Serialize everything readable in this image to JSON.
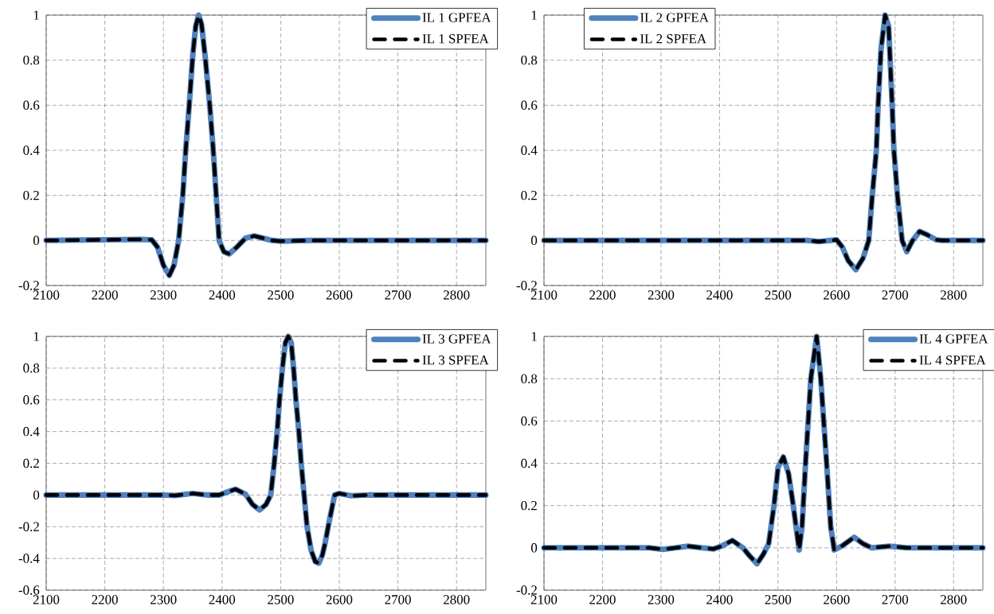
{
  "chart_data": [
    {
      "type": "line",
      "x": [
        2100,
        2260,
        2280,
        2290,
        2300,
        2310,
        2318,
        2326,
        2333,
        2338,
        2344,
        2350,
        2355,
        2360,
        2365,
        2371,
        2379,
        2385,
        2390,
        2395,
        2403,
        2412,
        2425,
        2440,
        2455,
        2470,
        2485,
        2500,
        2550,
        2850
      ],
      "series": [
        {
          "name": "IL 1 GPFEA",
          "color": "#4f81bd",
          "line_style": "solid",
          "values": [
            0,
            0.005,
            0.003,
            -0.03,
            -0.11,
            -0.155,
            -0.11,
            0,
            0.2,
            0.4,
            0.6,
            0.82,
            0.95,
            1,
            0.96,
            0.82,
            0.6,
            0.4,
            0.2,
            0,
            -0.05,
            -0.06,
            -0.03,
            0.01,
            0.02,
            0.01,
            0,
            -0.003,
            0,
            0
          ]
        },
        {
          "name": "IL 1 SPFEA",
          "color": "#000000",
          "line_style": "dashed",
          "values": [
            0,
            0.005,
            0.003,
            -0.03,
            -0.11,
            -0.155,
            -0.11,
            0,
            0.2,
            0.4,
            0.6,
            0.82,
            0.95,
            1,
            0.96,
            0.82,
            0.6,
            0.4,
            0.2,
            0,
            -0.05,
            -0.06,
            -0.03,
            0.01,
            0.02,
            0.01,
            0,
            -0.003,
            0,
            0
          ]
        }
      ],
      "xlim": [
        2100,
        2850
      ],
      "xticks": [
        2100,
        2200,
        2300,
        2400,
        2500,
        2600,
        2700,
        2800
      ],
      "ylim": [
        -0.2,
        1
      ],
      "yticks": [
        -0.2,
        0,
        0.2,
        0.4,
        0.6,
        0.8,
        1
      ],
      "grid": true,
      "legend": "top right"
    },
    {
      "type": "line",
      "x": [
        2100,
        2550,
        2570,
        2590,
        2600,
        2610,
        2620,
        2633,
        2645,
        2655,
        2661,
        2668,
        2671,
        2676,
        2683,
        2689,
        2695,
        2698,
        2704,
        2712,
        2720,
        2730,
        2742,
        2755,
        2770,
        2780,
        2850
      ],
      "series": [
        {
          "name": "IL 2 GPFEA",
          "color": "#4f81bd",
          "line_style": "solid",
          "values": [
            0,
            0,
            -0.005,
            0,
            0.003,
            -0.03,
            -0.09,
            -0.13,
            -0.08,
            0,
            0.2,
            0.4,
            0.6,
            0.85,
            1,
            0.95,
            0.6,
            0.4,
            0.2,
            0,
            -0.05,
            0,
            0.04,
            0.025,
            0.003,
            0,
            0
          ]
        },
        {
          "name": "IL 2 SPFEA",
          "color": "#000000",
          "line_style": "dashed",
          "values": [
            0,
            0,
            -0.005,
            0,
            0.003,
            -0.03,
            -0.09,
            -0.13,
            -0.08,
            0,
            0.2,
            0.4,
            0.6,
            0.85,
            1,
            0.95,
            0.6,
            0.4,
            0.2,
            0,
            -0.05,
            0,
            0.04,
            0.025,
            0.003,
            0,
            0
          ]
        }
      ],
      "xlim": [
        2100,
        2850
      ],
      "xticks": [
        2100,
        2200,
        2300,
        2400,
        2500,
        2600,
        2700,
        2800
      ],
      "ylim": [
        -0.2,
        1
      ],
      "yticks": [
        -0.2,
        0,
        0.2,
        0.4,
        0.6,
        0.8,
        1
      ],
      "grid": true,
      "legend": "top left"
    },
    {
      "type": "line",
      "x": [
        2100,
        2300,
        2320,
        2350,
        2375,
        2395,
        2410,
        2423,
        2440,
        2452,
        2464,
        2475,
        2483,
        2489,
        2494,
        2498,
        2503,
        2508,
        2513,
        2518,
        2522,
        2526,
        2531,
        2535,
        2540,
        2545,
        2552,
        2559,
        2565,
        2571,
        2576,
        2581,
        2592,
        2600,
        2620,
        2650,
        2850
      ],
      "series": [
        {
          "name": "IL 3 GPFEA",
          "color": "#4f81bd",
          "line_style": "solid",
          "values": [
            0,
            0,
            -0.003,
            0.01,
            0,
            0,
            0.02,
            0.037,
            0.005,
            -0.06,
            -0.094,
            -0.06,
            0,
            0.2,
            0.4,
            0.6,
            0.8,
            0.96,
            1,
            0.96,
            0.8,
            0.6,
            0.4,
            0.2,
            0,
            -0.2,
            -0.35,
            -0.42,
            -0.43,
            -0.38,
            -0.3,
            -0.2,
            0,
            0.01,
            -0.005,
            0,
            0
          ]
        },
        {
          "name": "IL 3 SPFEA",
          "color": "#000000",
          "line_style": "dashed",
          "values": [
            0,
            0,
            -0.003,
            0.01,
            0,
            0,
            0.02,
            0.037,
            0.005,
            -0.06,
            -0.094,
            -0.06,
            0,
            0.2,
            0.4,
            0.6,
            0.8,
            0.96,
            1,
            0.96,
            0.8,
            0.6,
            0.4,
            0.2,
            0,
            -0.2,
            -0.35,
            -0.42,
            -0.43,
            -0.38,
            -0.3,
            -0.2,
            0,
            0.01,
            -0.005,
            0,
            0
          ]
        }
      ],
      "xlim": [
        2100,
        2850
      ],
      "xticks": [
        2100,
        2200,
        2300,
        2400,
        2500,
        2600,
        2700,
        2800
      ],
      "ylim": [
        -0.6,
        1
      ],
      "yticks": [
        -0.6,
        -0.4,
        -0.2,
        0,
        0.2,
        0.4,
        0.6,
        0.8,
        1
      ],
      "grid": true,
      "legend": "top right"
    },
    {
      "type": "line",
      "x": [
        2100,
        2280,
        2303,
        2325,
        2346,
        2370,
        2390,
        2405,
        2422,
        2440,
        2452,
        2464,
        2475,
        2484,
        2493,
        2500,
        2509,
        2518,
        2526,
        2536,
        2541,
        2547,
        2556,
        2566,
        2573,
        2583,
        2590,
        2596,
        2610,
        2630,
        2645,
        2660,
        2690,
        2720,
        2850
      ],
      "series": [
        {
          "name": "IL 4 GPFEA",
          "color": "#4f81bd",
          "line_style": "solid",
          "values": [
            0,
            0,
            -0.007,
            0,
            0.008,
            0,
            -0.005,
            0.01,
            0.035,
            0,
            -0.04,
            -0.075,
            -0.03,
            0.02,
            0.2,
            0.38,
            0.43,
            0.35,
            0.2,
            -0.01,
            0.1,
            0.4,
            0.8,
            1,
            0.8,
            0.4,
            0.1,
            -0.01,
            0.01,
            0.05,
            0.02,
            0,
            0.008,
            0,
            0
          ]
        },
        {
          "name": "IL 4 SPFEA",
          "color": "#000000",
          "line_style": "dashed",
          "values": [
            0,
            0,
            -0.007,
            0,
            0.008,
            0,
            -0.005,
            0.01,
            0.035,
            0,
            -0.04,
            -0.075,
            -0.03,
            0.02,
            0.2,
            0.38,
            0.43,
            0.35,
            0.2,
            -0.01,
            0.1,
            0.4,
            0.8,
            1,
            0.8,
            0.4,
            0.1,
            -0.01,
            0.01,
            0.05,
            0.02,
            0,
            0.008,
            0,
            0
          ]
        }
      ],
      "xlim": [
        2100,
        2850
      ],
      "xticks": [
        2100,
        2200,
        2300,
        2400,
        2500,
        2600,
        2700,
        2800
      ],
      "ylim": [
        -0.2,
        1
      ],
      "yticks": [
        -0.2,
        0,
        0.2,
        0.4,
        0.6,
        0.8,
        1
      ],
      "grid": true,
      "legend": "top right"
    }
  ]
}
